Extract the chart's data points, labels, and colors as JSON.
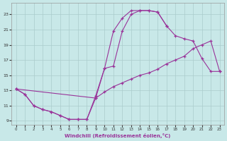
{
  "xlabel": "Windchill (Refroidissement éolien,°C)",
  "xlim": [
    -0.5,
    23.5
  ],
  "ylim": [
    8.5,
    24.5
  ],
  "xticks": [
    0,
    1,
    2,
    3,
    4,
    5,
    6,
    7,
    8,
    9,
    10,
    11,
    12,
    13,
    14,
    15,
    16,
    17,
    18,
    19,
    20,
    21,
    22,
    23
  ],
  "yticks": [
    9,
    11,
    13,
    15,
    17,
    19,
    21,
    23
  ],
  "line_color": "#993399",
  "bg_color": "#c8e8e8",
  "grid_color": "#aacccc",
  "line1_x": [
    0,
    1,
    2,
    3,
    4,
    5,
    6,
    7,
    8,
    9,
    10,
    11,
    12,
    13,
    14,
    15,
    16,
    17
  ],
  "line1_y": [
    13.2,
    12.5,
    11.0,
    10.5,
    10.2,
    9.7,
    9.2,
    9.2,
    9.2,
    12.3,
    15.9,
    20.8,
    22.5,
    23.5,
    23.5,
    23.5,
    23.3,
    21.5
  ],
  "line2_x": [
    0,
    1,
    2,
    3,
    4,
    5,
    6,
    7,
    8,
    9,
    10,
    11,
    12,
    13,
    14,
    15,
    16,
    17,
    18,
    19,
    20,
    21,
    22,
    23
  ],
  "line2_y": [
    13.2,
    12.5,
    11.0,
    10.5,
    10.2,
    9.7,
    9.2,
    9.2,
    9.2,
    12.0,
    12.8,
    13.5,
    14.0,
    14.5,
    15.0,
    15.3,
    15.8,
    16.5,
    17.0,
    17.5,
    18.5,
    19.0,
    19.5,
    15.5
  ],
  "line3_x": [
    0,
    9,
    10,
    11,
    12,
    13,
    14,
    15,
    16,
    17,
    18,
    19,
    20,
    21,
    22,
    23
  ],
  "line3_y": [
    13.2,
    12.0,
    15.9,
    16.2,
    20.8,
    23.0,
    23.5,
    23.5,
    23.3,
    21.5,
    20.2,
    19.8,
    19.5,
    17.2,
    15.5,
    15.5
  ]
}
